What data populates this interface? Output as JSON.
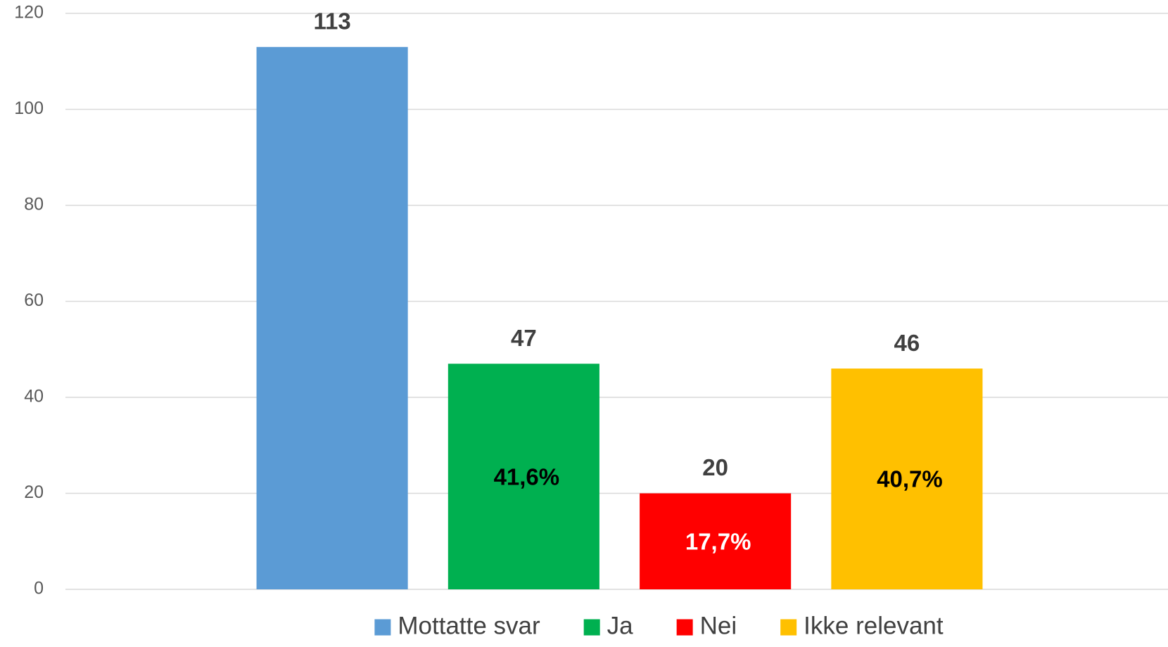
{
  "chart_data": {
    "type": "bar",
    "categories": [
      null
    ],
    "series": [
      {
        "name": "Mottatte svar",
        "color": "#5b9bd5",
        "values": [
          113
        ]
      },
      {
        "name": "Ja",
        "color": "#00b050",
        "values": [
          47
        ],
        "share_label": "41,6%",
        "share_label_color": "#000000"
      },
      {
        "name": "Nei",
        "color": "#ff0000",
        "values": [
          20
        ],
        "share_label": "17,7%",
        "share_label_color": "#ffffff"
      },
      {
        "name": "Ikke relevant",
        "color": "#ffc000",
        "values": [
          46
        ],
        "share_label": "40,7%",
        "share_label_color": "#000000"
      }
    ],
    "ylim": [
      0,
      120
    ],
    "yticks": [
      0,
      20,
      40,
      60,
      80,
      100,
      120
    ],
    "grid": true,
    "legend": "bottom"
  }
}
